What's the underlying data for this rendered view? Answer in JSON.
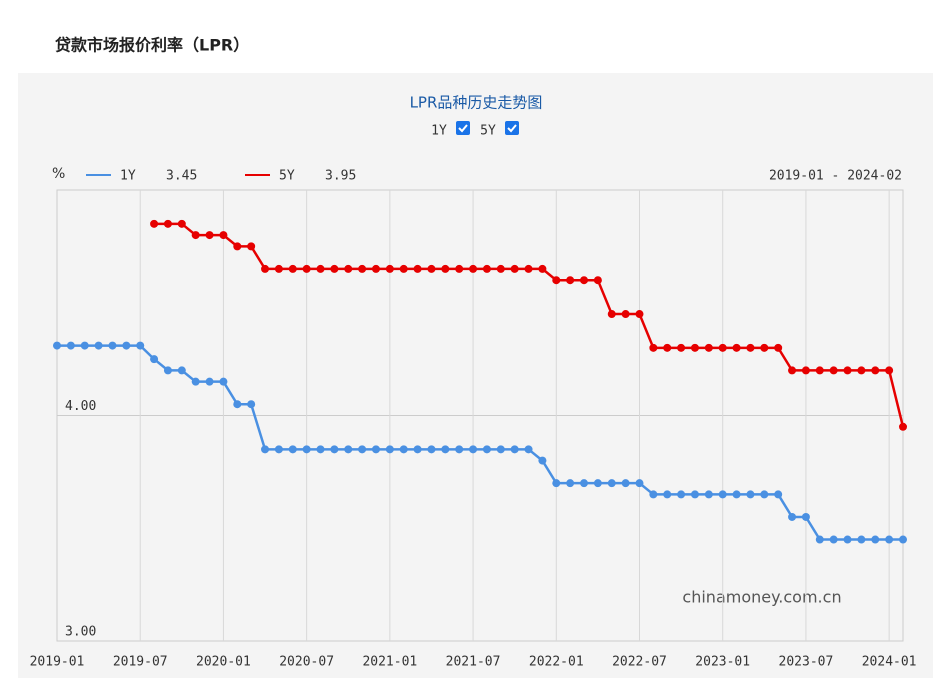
{
  "page_title": "贷款市场报价利率（LPR）",
  "chart_data": {
    "type": "line",
    "title": "LPR品种历史走势图",
    "y_label": "%",
    "date_range": "2019-01 - 2024-02",
    "watermark": "chinamoney.com.cn",
    "categories": [
      "2019-01",
      null,
      null,
      null,
      null,
      null,
      "2019-07",
      null,
      null,
      null,
      null,
      null,
      "2020-01",
      null,
      null,
      null,
      null,
      null,
      "2020-07",
      null,
      null,
      null,
      null,
      null,
      "2021-01",
      null,
      null,
      null,
      null,
      null,
      "2021-07",
      null,
      null,
      null,
      null,
      null,
      "2022-01",
      null,
      null,
      null,
      null,
      null,
      "2022-07",
      null,
      null,
      null,
      null,
      null,
      "2023-01",
      null,
      null,
      null,
      null,
      null,
      "2023-07",
      null,
      null,
      null,
      null,
      null,
      "2024-01",
      null
    ],
    "series": [
      {
        "name": "1Y",
        "color": "#4a90e2",
        "values": [
          4.31,
          4.31,
          4.31,
          4.31,
          4.31,
          4.31,
          4.31,
          4.25,
          4.2,
          4.2,
          4.15,
          4.15,
          4.15,
          4.05,
          4.05,
          3.85,
          3.85,
          3.85,
          3.85,
          3.85,
          3.85,
          3.85,
          3.85,
          3.85,
          3.85,
          3.85,
          3.85,
          3.85,
          3.85,
          3.85,
          3.85,
          3.85,
          3.85,
          3.85,
          3.85,
          3.8,
          3.7,
          3.7,
          3.7,
          3.7,
          3.7,
          3.7,
          3.7,
          3.65,
          3.65,
          3.65,
          3.65,
          3.65,
          3.65,
          3.65,
          3.65,
          3.65,
          3.65,
          3.55,
          3.55,
          3.45,
          3.45,
          3.45,
          3.45,
          3.45,
          3.45,
          3.45
        ]
      },
      {
        "name": "5Y",
        "color": "#e60000",
        "values": [
          null,
          null,
          null,
          null,
          null,
          null,
          null,
          4.85,
          4.85,
          4.85,
          4.8,
          4.8,
          4.8,
          4.75,
          4.75,
          4.65,
          4.65,
          4.65,
          4.65,
          4.65,
          4.65,
          4.65,
          4.65,
          4.65,
          4.65,
          4.65,
          4.65,
          4.65,
          4.65,
          4.65,
          4.65,
          4.65,
          4.65,
          4.65,
          4.65,
          4.65,
          4.6,
          4.6,
          4.6,
          4.6,
          4.45,
          4.45,
          4.45,
          4.3,
          4.3,
          4.3,
          4.3,
          4.3,
          4.3,
          4.3,
          4.3,
          4.3,
          4.3,
          4.2,
          4.2,
          4.2,
          4.2,
          4.2,
          4.2,
          4.2,
          4.2,
          3.95
        ]
      }
    ],
    "ylim": [
      3,
      5
    ],
    "yticks": [
      {
        "value": 3,
        "label": "3.00"
      },
      {
        "value": 4,
        "label": "4.00"
      }
    ],
    "grid": true
  }
}
